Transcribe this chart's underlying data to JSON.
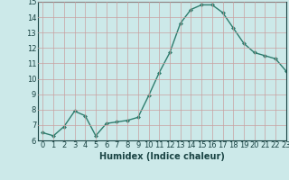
{
  "x": [
    0,
    1,
    2,
    3,
    4,
    5,
    6,
    7,
    8,
    9,
    10,
    11,
    12,
    13,
    14,
    15,
    16,
    17,
    18,
    19,
    20,
    21,
    22,
    23
  ],
  "y": [
    6.5,
    6.3,
    6.9,
    7.9,
    7.6,
    6.3,
    7.1,
    7.2,
    7.3,
    7.5,
    8.9,
    10.4,
    11.7,
    13.6,
    14.5,
    14.8,
    14.8,
    14.3,
    13.3,
    12.3,
    11.7,
    11.5,
    11.3,
    10.5
  ],
  "line_color": "#2e7d6e",
  "marker": "D",
  "marker_size": 2.0,
  "line_width": 1.0,
  "bg_color": "#cce9e9",
  "grid_color": "#b0d0d0",
  "xlabel": "Humidex (Indice chaleur)",
  "ylim": [
    6,
    15
  ],
  "xlim": [
    -0.5,
    23
  ],
  "yticks": [
    6,
    7,
    8,
    9,
    10,
    11,
    12,
    13,
    14,
    15
  ],
  "xticks": [
    0,
    1,
    2,
    3,
    4,
    5,
    6,
    7,
    8,
    9,
    10,
    11,
    12,
    13,
    14,
    15,
    16,
    17,
    18,
    19,
    20,
    21,
    22,
    23
  ],
  "xlabel_fontsize": 7.0,
  "tick_fontsize": 6.0,
  "tick_color": "#1a4444",
  "axis_color": "#1a4444"
}
